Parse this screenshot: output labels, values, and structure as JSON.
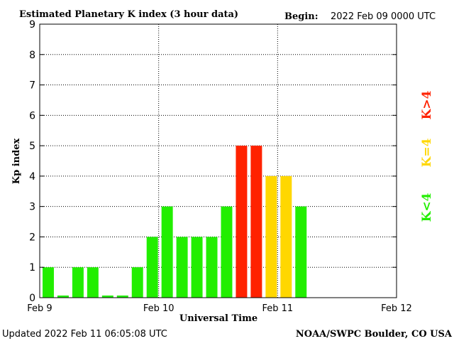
{
  "header": {
    "title": "Estimated Planetary K index (3 hour data)",
    "begin_label": "Begin:",
    "begin_value": "2022 Feb 09 0000 UTC"
  },
  "footer": {
    "updated": "Updated 2022 Feb 11 06:05:08 UTC",
    "source": "NOAA/SWPC Boulder, CO USA"
  },
  "legend": [
    {
      "text": "K>4",
      "color": "#ff2200"
    },
    {
      "text": "K=4",
      "color": "#ffd700"
    },
    {
      "text": "K<4",
      "color": "#22ee00"
    }
  ],
  "chart_data": {
    "type": "bar",
    "title": "Estimated Planetary K index (3 hour data)",
    "xlabel": "Universal Time",
    "ylabel": "Kp index",
    "ylim": [
      0,
      9
    ],
    "y_ticks": [
      "0",
      "1",
      "2",
      "3",
      "4",
      "5",
      "6",
      "7",
      "8",
      "9"
    ],
    "x_tick_labels": [
      "Feb 9",
      "Feb 10",
      "Feb 11",
      "Feb 12"
    ],
    "bar_interval": "3 hours",
    "values": [
      1,
      0,
      1,
      1,
      0,
      0,
      1,
      2,
      3,
      2,
      2,
      2,
      3,
      5,
      5,
      4,
      4,
      3
    ],
    "grid": true,
    "colors": {
      "below_4": "#22ee00",
      "equal_4": "#ffd700",
      "above_4": "#ff2200"
    }
  }
}
